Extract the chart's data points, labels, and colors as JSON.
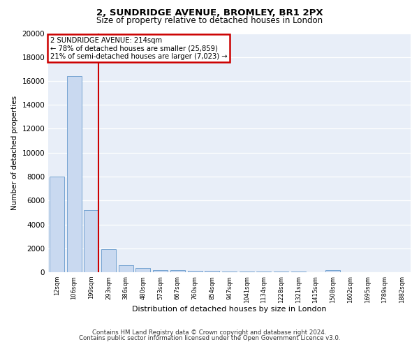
{
  "title1": "2, SUNDRIDGE AVENUE, BROMLEY, BR1 2PX",
  "title2": "Size of property relative to detached houses in London",
  "xlabel": "Distribution of detached houses by size in London",
  "ylabel": "Number of detached properties",
  "categories": [
    "12sqm",
    "106sqm",
    "199sqm",
    "293sqm",
    "386sqm",
    "480sqm",
    "573sqm",
    "667sqm",
    "760sqm",
    "854sqm",
    "947sqm",
    "1041sqm",
    "1134sqm",
    "1228sqm",
    "1321sqm",
    "1415sqm",
    "1508sqm",
    "1602sqm",
    "1695sqm",
    "1789sqm",
    "1882sqm"
  ],
  "values": [
    8000,
    16400,
    5200,
    1900,
    600,
    350,
    200,
    150,
    100,
    130,
    80,
    60,
    50,
    40,
    30,
    20,
    150,
    10,
    10,
    10,
    10
  ],
  "bar_color": "#c9d9f0",
  "bar_edge_color": "#6699cc",
  "vline_x_index": 2.42,
  "annotation_title": "2 SUNDRIDGE AVENUE: 214sqm",
  "annotation_line1": "← 78% of detached houses are smaller (25,859)",
  "annotation_line2": "21% of semi-detached houses are larger (7,023) →",
  "annotation_box_color": "#ffffff",
  "annotation_box_edge": "#cc0000",
  "vline_color": "#cc0000",
  "ylim": [
    0,
    20000
  ],
  "yticks": [
    0,
    2000,
    4000,
    6000,
    8000,
    10000,
    12000,
    14000,
    16000,
    18000,
    20000
  ],
  "footer1": "Contains HM Land Registry data © Crown copyright and database right 2024.",
  "footer2": "Contains public sector information licensed under the Open Government Licence v3.0.",
  "plot_bg": "#e8eef8"
}
